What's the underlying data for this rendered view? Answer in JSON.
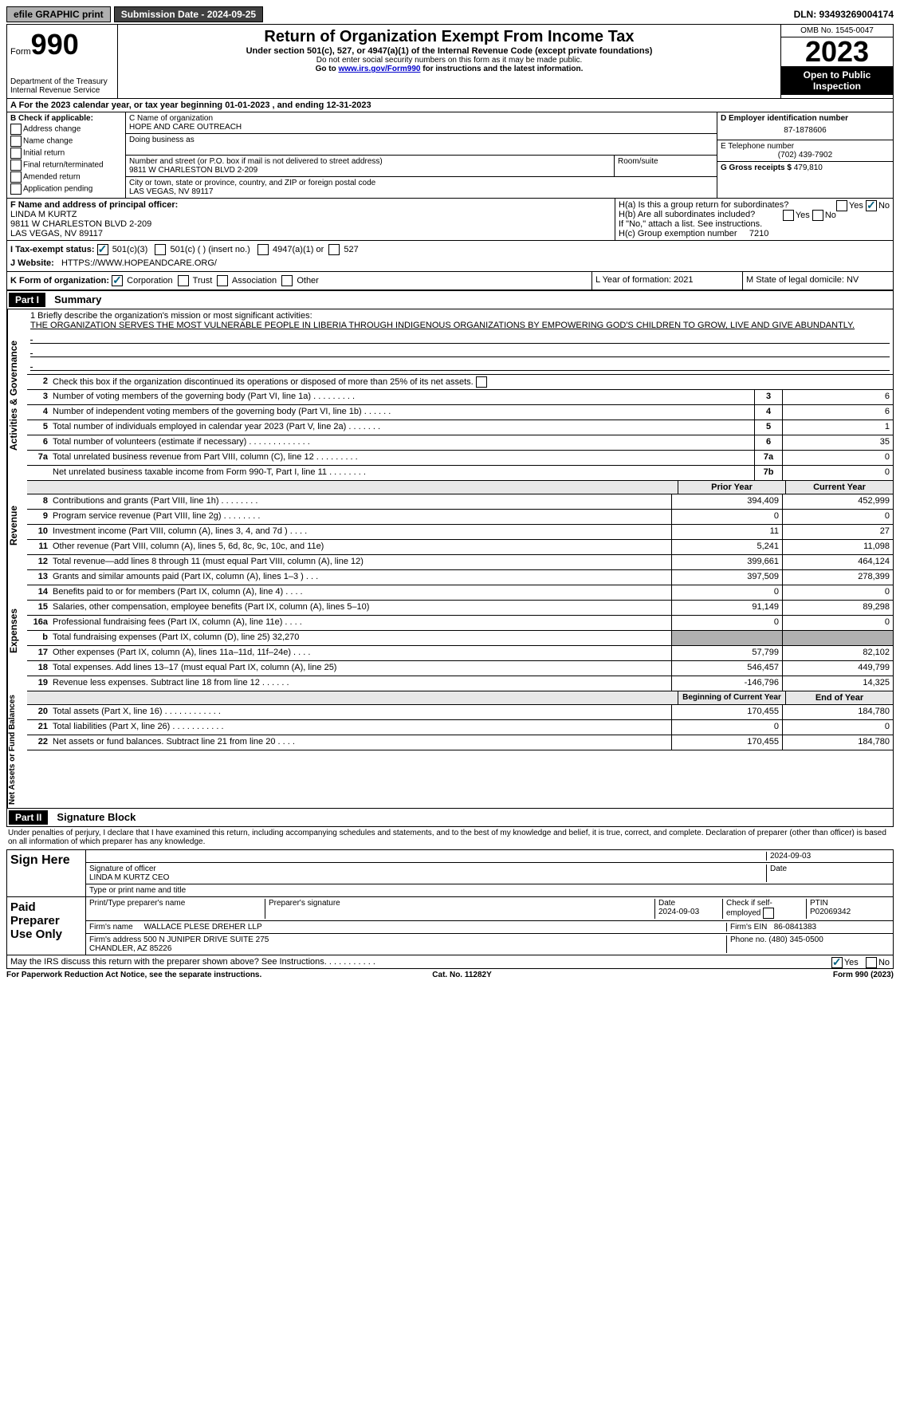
{
  "top": {
    "efile": "efile GRAPHIC print",
    "submission": "Submission Date - 2024-09-25",
    "dln": "DLN: 93493269004174"
  },
  "header": {
    "form_label": "Form",
    "form_number": "990",
    "title": "Return of Organization Exempt From Income Tax",
    "subtitle": "Under section 501(c), 527, or 4947(a)(1) of the Internal Revenue Code (except private foundations)",
    "note1": "Do not enter social security numbers on this form as it may be made public.",
    "note2_prefix": "Go to ",
    "note2_link": "www.irs.gov/Form990",
    "note2_suffix": " for instructions and the latest information.",
    "dept": "Department of the Treasury\nInternal Revenue Service",
    "omb": "OMB No. 1545-0047",
    "year": "2023",
    "inspect": "Open to Public Inspection"
  },
  "rowA": "A For the 2023 calendar year, or tax year beginning 01-01-2023   , and ending 12-31-2023",
  "sectionB": {
    "label": "B Check if applicable:",
    "items": [
      "Address change",
      "Name change",
      "Initial return",
      "Final return/terminated",
      "Amended return",
      "Application pending"
    ]
  },
  "sectionC": {
    "name_label": "C Name of organization",
    "name": "HOPE AND CARE OUTREACH",
    "dba_label": "Doing business as",
    "street_label": "Number and street (or P.O. box if mail is not delivered to street address)",
    "street": "9811 W CHARLESTON BLVD 2-209",
    "suite_label": "Room/suite",
    "city_label": "City or town, state or province, country, and ZIP or foreign postal code",
    "city": "LAS VEGAS, NV  89117"
  },
  "sectionDE": {
    "d_label": "D Employer identification number",
    "d_val": "87-1878606",
    "e_label": "E Telephone number",
    "e_val": "(702) 439-7902",
    "g_label": "G Gross receipts $",
    "g_val": "479,810"
  },
  "sectionF": {
    "label": "F Name and address of principal officer:",
    "name": "LINDA M KURTZ",
    "street": "9811 W CHARLESTON BLVD 2-209",
    "city": "LAS VEGAS, NV  89117"
  },
  "sectionH": {
    "ha_label": "H(a)  Is this a group return for subordinates?",
    "hb_label": "H(b)  Are all subordinates included?",
    "hb_note": "If \"No,\" attach a list. See instructions.",
    "hc_label": "H(c)  Group exemption number",
    "hc_val": "7210"
  },
  "rowI": {
    "label": "I    Tax-exempt status:",
    "opt1": "501(c)(3)",
    "opt2": "501(c) (  ) (insert no.)",
    "opt3": "4947(a)(1) or",
    "opt4": "527"
  },
  "rowJ": {
    "label": "J   Website:",
    "val": "HTTPS://WWW.HOPEANDCARE.ORG/"
  },
  "rowK": {
    "label": "K Form of organization:",
    "opts": [
      "Corporation",
      "Trust",
      "Association",
      "Other"
    ],
    "l_label": "L Year of formation: 2021",
    "m_label": "M State of legal domicile: NV"
  },
  "part1": {
    "header": "Part I",
    "title": "Summary",
    "mission_label": "1   Briefly describe the organization's mission or most significant activities:",
    "mission": "THE ORGANIZATION SERVES THE MOST VULNERABLE PEOPLE IN LIBERIA THROUGH INDIGENOUS ORGANIZATIONS BY EMPOWERING GOD'S CHILDREN TO GROW, LIVE AND GIVE ABUNDANTLY.",
    "line2": "Check this box      if the organization discontinued its operations or disposed of more than 25% of its net assets."
  },
  "governance": {
    "lines": [
      {
        "n": "3",
        "desc": "Number of voting members of the governing body (Part VI, line 1a)   .    .    .    .    .    .    .    .    .",
        "box": "3",
        "val": "6"
      },
      {
        "n": "4",
        "desc": "Number of independent voting members of the governing body (Part VI, line 1b)  .    .    .    .    .    .",
        "box": "4",
        "val": "6"
      },
      {
        "n": "5",
        "desc": "Total number of individuals employed in calendar year 2023 (Part V, line 2a)  .    .    .    .    .    .    .",
        "box": "5",
        "val": "1"
      },
      {
        "n": "6",
        "desc": "Total number of volunteers (estimate if necessary)   .    .    .    .    .    .    .    .    .    .    .    .    .",
        "box": "6",
        "val": "35"
      },
      {
        "n": "7a",
        "desc": "Total unrelated business revenue from Part VIII, column (C), line 12  .    .    .    .    .    .    .    .    .",
        "box": "7a",
        "val": "0"
      },
      {
        "n": "",
        "desc": "Net unrelated business taxable income from Form 990-T, Part I, line 11  .    .    .    .    .    .    .    .",
        "box": "7b",
        "val": "0"
      }
    ]
  },
  "revenue": {
    "ch1": "Prior Year",
    "ch2": "Current Year",
    "lines": [
      {
        "n": "8",
        "desc": "Contributions and grants (Part VIII, line 1h)   .    .    .    .    .    .    .    .",
        "v1": "394,409",
        "v2": "452,999"
      },
      {
        "n": "9",
        "desc": "Program service revenue (Part VIII, line 2g)   .    .    .    .    .    .    .    .",
        "v1": "0",
        "v2": "0"
      },
      {
        "n": "10",
        "desc": "Investment income (Part VIII, column (A), lines 3, 4, and 7d )   .    .    .    .",
        "v1": "11",
        "v2": "27"
      },
      {
        "n": "11",
        "desc": "Other revenue (Part VIII, column (A), lines 5, 6d, 8c, 9c, 10c, and 11e)",
        "v1": "5,241",
        "v2": "11,098"
      },
      {
        "n": "12",
        "desc": "Total revenue—add lines 8 through 11 (must equal Part VIII, column (A), line 12)",
        "v1": "399,661",
        "v2": "464,124"
      }
    ]
  },
  "expenses": {
    "lines": [
      {
        "n": "13",
        "desc": "Grants and similar amounts paid (Part IX, column (A), lines 1–3 )  .    .    .",
        "v1": "397,509",
        "v2": "278,399"
      },
      {
        "n": "14",
        "desc": "Benefits paid to or for members (Part IX, column (A), line 4)  .    .    .    .",
        "v1": "0",
        "v2": "0"
      },
      {
        "n": "15",
        "desc": "Salaries, other compensation, employee benefits (Part IX, column (A), lines 5–10)",
        "v1": "91,149",
        "v2": "89,298"
      },
      {
        "n": "16a",
        "desc": "Professional fundraising fees (Part IX, column (A), line 11e)   .    .    .    .",
        "v1": "0",
        "v2": "0"
      },
      {
        "n": "b",
        "desc": "Total fundraising expenses (Part IX, column (D), line 25) 32,270",
        "v1": "",
        "v2": "",
        "shaded": true
      },
      {
        "n": "17",
        "desc": "Other expenses (Part IX, column (A), lines 11a–11d, 11f–24e)   .    .    .    .",
        "v1": "57,799",
        "v2": "82,102"
      },
      {
        "n": "18",
        "desc": "Total expenses. Add lines 13–17 (must equal Part IX, column (A), line 25)",
        "v1": "546,457",
        "v2": "449,799"
      },
      {
        "n": "19",
        "desc": "Revenue less expenses. Subtract line 18 from line 12  .    .    .    .    .    .",
        "v1": "-146,796",
        "v2": "14,325"
      }
    ]
  },
  "netassets": {
    "ch1": "Beginning of Current Year",
    "ch2": "End of Year",
    "lines": [
      {
        "n": "20",
        "desc": "Total assets (Part X, line 16)  .    .    .    .    .    .    .    .    .    .    .    .",
        "v1": "170,455",
        "v2": "184,780"
      },
      {
        "n": "21",
        "desc": "Total liabilities (Part X, line 26)  .    .    .    .    .    .    .    .    .    .    .",
        "v1": "0",
        "v2": "0"
      },
      {
        "n": "22",
        "desc": "Net assets or fund balances. Subtract line 21 from line 20   .    .    .    .",
        "v1": "170,455",
        "v2": "184,780"
      }
    ]
  },
  "part2": {
    "header": "Part II",
    "title": "Signature Block",
    "perjury": "Under penalties of perjury, I declare that I have examined this return, including accompanying schedules and statements, and to the best of my knowledge and belief, it is true, correct, and complete. Declaration of preparer (other than officer) is based on all information of which preparer has any knowledge."
  },
  "sign": {
    "label": "Sign Here",
    "sig_label": "Signature of officer",
    "date": "2024-09-03",
    "name": "LINDA M KURTZ  CEO",
    "type_label": "Type or print name and title"
  },
  "preparer": {
    "label": "Paid Preparer Use Only",
    "print_label": "Print/Type preparer's name",
    "sig_label": "Preparer's signature",
    "date_label": "Date",
    "date": "2024-09-03",
    "check_label": "Check        if self-employed",
    "ptin_label": "PTIN",
    "ptin": "P02069342",
    "firm_name_label": "Firm's name",
    "firm_name": "WALLACE PLESE DREHER LLP",
    "firm_ein_label": "Firm's EIN",
    "firm_ein": "86-0841383",
    "firm_addr_label": "Firm's address",
    "firm_addr": "500 N JUNIPER DRIVE SUITE 275\nCHANDLER, AZ  85226",
    "phone_label": "Phone no.",
    "phone": "(480) 345-0500",
    "discuss": "May the IRS discuss this return with the preparer shown above? See Instructions.  .    .    .    .    .    .    .    .    .    ."
  },
  "footer": {
    "left": "For Paperwork Reduction Act Notice, see the separate instructions.",
    "mid": "Cat. No. 11282Y",
    "right": "Form 990 (2023)"
  },
  "labels": {
    "side_gov": "Activities & Governance",
    "side_rev": "Revenue",
    "side_exp": "Expenses",
    "side_net": "Net Assets or Fund Balances",
    "yes": "Yes",
    "no": "No"
  }
}
